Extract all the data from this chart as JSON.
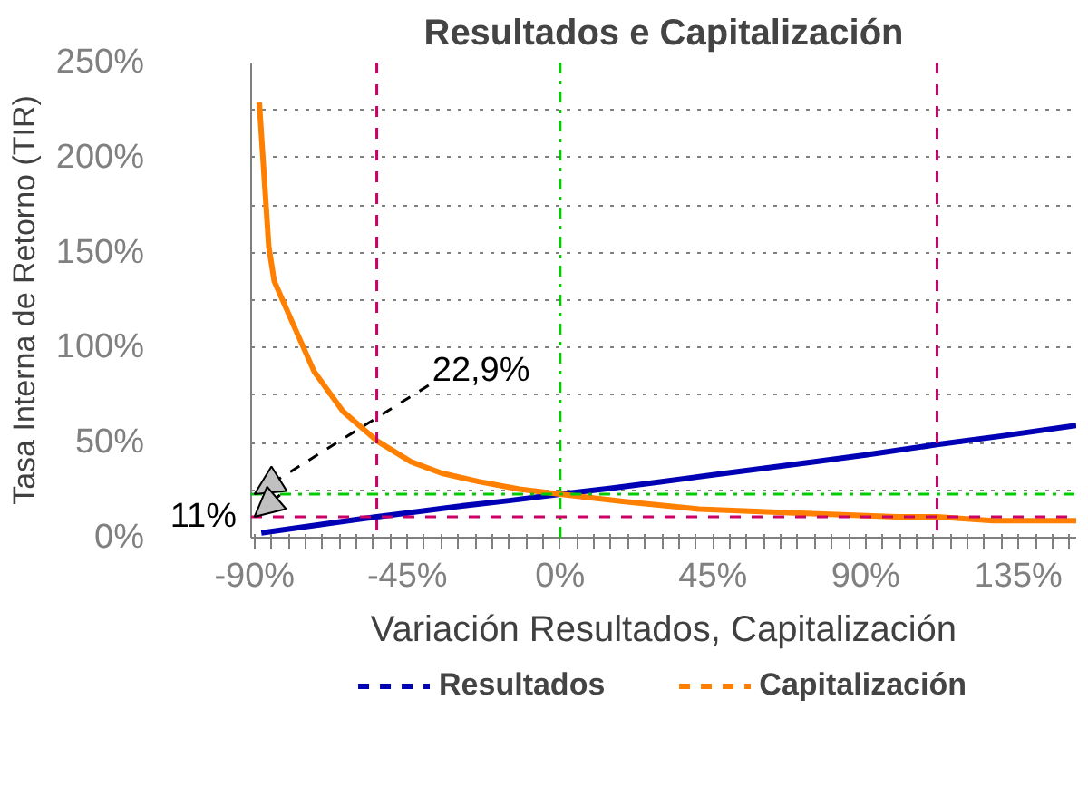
{
  "chart_data": {
    "type": "line",
    "title": "Resultados e Capitalización",
    "xlabel": "Variación Resultados, Capitalización",
    "ylabel": "Tasa Interna de Retorno (TIR)",
    "xlim": [
      -91,
      152
    ],
    "ylim": [
      0,
      250
    ],
    "xticks": [
      {
        "value": -90,
        "label": "-90%"
      },
      {
        "value": -85,
        "label": null
      },
      {
        "value": -80,
        "label": null
      },
      {
        "value": -75,
        "label": null
      },
      {
        "value": -70,
        "label": null
      },
      {
        "value": -65,
        "label": null
      },
      {
        "value": -60,
        "label": null
      },
      {
        "value": -55,
        "label": null
      },
      {
        "value": -50,
        "label": null
      },
      {
        "value": -45,
        "label": "-45%"
      },
      {
        "value": -40,
        "label": null
      },
      {
        "value": -35,
        "label": null
      },
      {
        "value": -30,
        "label": null
      },
      {
        "value": -25,
        "label": null
      },
      {
        "value": -20,
        "label": null
      },
      {
        "value": -15,
        "label": null
      },
      {
        "value": -10,
        "label": null
      },
      {
        "value": -5,
        "label": null
      },
      {
        "value": 0,
        "label": "0%"
      },
      {
        "value": 5,
        "label": null
      },
      {
        "value": 10,
        "label": null
      },
      {
        "value": 15,
        "label": null
      },
      {
        "value": 20,
        "label": null
      },
      {
        "value": 25,
        "label": null
      },
      {
        "value": 30,
        "label": null
      },
      {
        "value": 35,
        "label": null
      },
      {
        "value": 40,
        "label": null
      },
      {
        "value": 45,
        "label": "45%"
      },
      {
        "value": 50,
        "label": null
      },
      {
        "value": 55,
        "label": null
      },
      {
        "value": 60,
        "label": null
      },
      {
        "value": 65,
        "label": null
      },
      {
        "value": 70,
        "label": null
      },
      {
        "value": 75,
        "label": null
      },
      {
        "value": 80,
        "label": null
      },
      {
        "value": 85,
        "label": null
      },
      {
        "value": 90,
        "label": "90%"
      },
      {
        "value": 95,
        "label": null
      },
      {
        "value": 100,
        "label": null
      },
      {
        "value": 105,
        "label": null
      },
      {
        "value": 110,
        "label": null
      },
      {
        "value": 115,
        "label": null
      },
      {
        "value": 120,
        "label": null
      },
      {
        "value": 125,
        "label": null
      },
      {
        "value": 130,
        "label": null
      },
      {
        "value": 135,
        "label": "135%"
      },
      {
        "value": 140,
        "label": null
      },
      {
        "value": 145,
        "label": null
      },
      {
        "value": 150,
        "label": null
      }
    ],
    "yticks": [
      {
        "value": 0,
        "label": "0%"
      },
      {
        "value": 25,
        "label": null
      },
      {
        "value": 50,
        "label": "50%"
      },
      {
        "value": 75,
        "label": null
      },
      {
        "value": 100,
        "label": "100%"
      },
      {
        "value": 125,
        "label": null
      },
      {
        "value": 150,
        "label": "150%"
      },
      {
        "value": 175,
        "label": null
      },
      {
        "value": 200,
        "label": "200%"
      },
      {
        "value": 225,
        "label": null
      },
      {
        "value": 250,
        "label": "250%"
      }
    ],
    "grid": "y",
    "legend": "bottom",
    "line_style": "solid",
    "marker": "none",
    "series": [
      {
        "name": "Resultados",
        "color": "#0000b4",
        "x": [
          -88,
          -80,
          -70,
          -60,
          -54,
          -45,
          -30,
          -15,
          0,
          15,
          30,
          45,
          60,
          75,
          90,
          111,
          130,
          152
        ],
        "values": [
          2.5,
          4.5,
          7,
          9.5,
          11,
          13,
          16.5,
          19.5,
          22.9,
          26,
          29.5,
          33,
          36.5,
          40,
          43.5,
          49,
          53.5,
          59
        ]
      },
      {
        "name": "Capitalización",
        "color": "#ff8000",
        "x": [
          -88.6,
          -85.8,
          -84.2,
          -78.3,
          -72.5,
          -64,
          -54,
          -44,
          -35,
          -24,
          -12,
          0,
          19,
          41,
          69,
          99,
          111,
          127.5,
          152
        ],
        "values": [
          229,
          153,
          135,
          111,
          87.6,
          66.5,
          51,
          40,
          34,
          29.5,
          25.5,
          22.9,
          19,
          15,
          13,
          11,
          11,
          9,
          9
        ]
      }
    ],
    "ref_lines": [
      {
        "axis": "y",
        "value": 22.9,
        "color": "#00cc00",
        "line_style": "dashdot"
      },
      {
        "axis": "x",
        "value": 0,
        "color": "#00cc00",
        "line_style": "dashdot"
      },
      {
        "axis": "y",
        "value": 11,
        "color": "#cc0066",
        "line_style": "dashed"
      },
      {
        "axis": "x",
        "value": -54,
        "color": "#cc0066",
        "line_style": "dashed"
      },
      {
        "axis": "x",
        "value": 111,
        "color": "#cc0066",
        "line_style": "dashed"
      }
    ],
    "annotations": [
      {
        "text": "22,9%",
        "x": -90,
        "y": 22.9
      },
      {
        "text": "11%",
        "x": -90,
        "y": 11
      }
    ]
  }
}
